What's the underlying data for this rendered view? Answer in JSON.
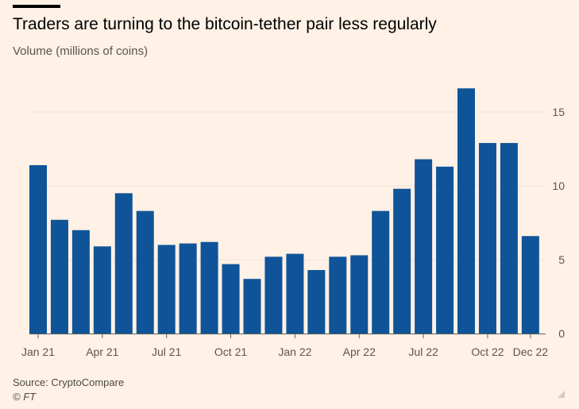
{
  "header": {
    "title": "Traders are turning to the bitcoin-tether pair less regularly",
    "subtitle": "Volume (millions of coins)"
  },
  "footer": {
    "source": "Source: CryptoCompare",
    "credit": "© FT"
  },
  "colors": {
    "background": "#fff1e5",
    "bar": "#0f5499",
    "grid": "#efe3d8",
    "axis": "#66605c",
    "text": "#5a5550"
  },
  "chart_data": {
    "type": "bar",
    "title": "Traders are turning to the bitcoin-tether pair less regularly",
    "ylabel": "Volume (millions of coins)",
    "xlabel": "",
    "ylim": [
      0,
      17
    ],
    "yticks": [
      0,
      5,
      10,
      15
    ],
    "grid": true,
    "categories": [
      "Jan 21",
      "Feb 21",
      "Mar 21",
      "Apr 21",
      "May 21",
      "Jun 21",
      "Jul 21",
      "Aug 21",
      "Sep 21",
      "Oct 21",
      "Nov 21",
      "Dec 21",
      "Jan 22",
      "Feb 22",
      "Mar 22",
      "Apr 22",
      "May 22",
      "Jun 22",
      "Jul 22",
      "Aug 22",
      "Sep 22",
      "Oct 22",
      "Nov 22",
      "Dec 22"
    ],
    "values": [
      11.4,
      7.7,
      7.0,
      5.9,
      9.5,
      8.3,
      6.0,
      6.1,
      6.2,
      4.7,
      3.7,
      5.2,
      5.4,
      4.3,
      5.2,
      5.3,
      8.3,
      9.8,
      11.8,
      11.3,
      16.6,
      12.9,
      12.9,
      6.6
    ],
    "xtick_labels": [
      {
        "index": 0,
        "label": "Jan 21"
      },
      {
        "index": 3,
        "label": "Apr 21"
      },
      {
        "index": 6,
        "label": "Jul 21"
      },
      {
        "index": 9,
        "label": "Oct 21"
      },
      {
        "index": 12,
        "label": "Jan 22"
      },
      {
        "index": 15,
        "label": "Apr 22"
      },
      {
        "index": 18,
        "label": "Jul 22"
      },
      {
        "index": 21,
        "label": "Oct 22"
      },
      {
        "index": 23,
        "label": "Dec 22"
      }
    ]
  }
}
